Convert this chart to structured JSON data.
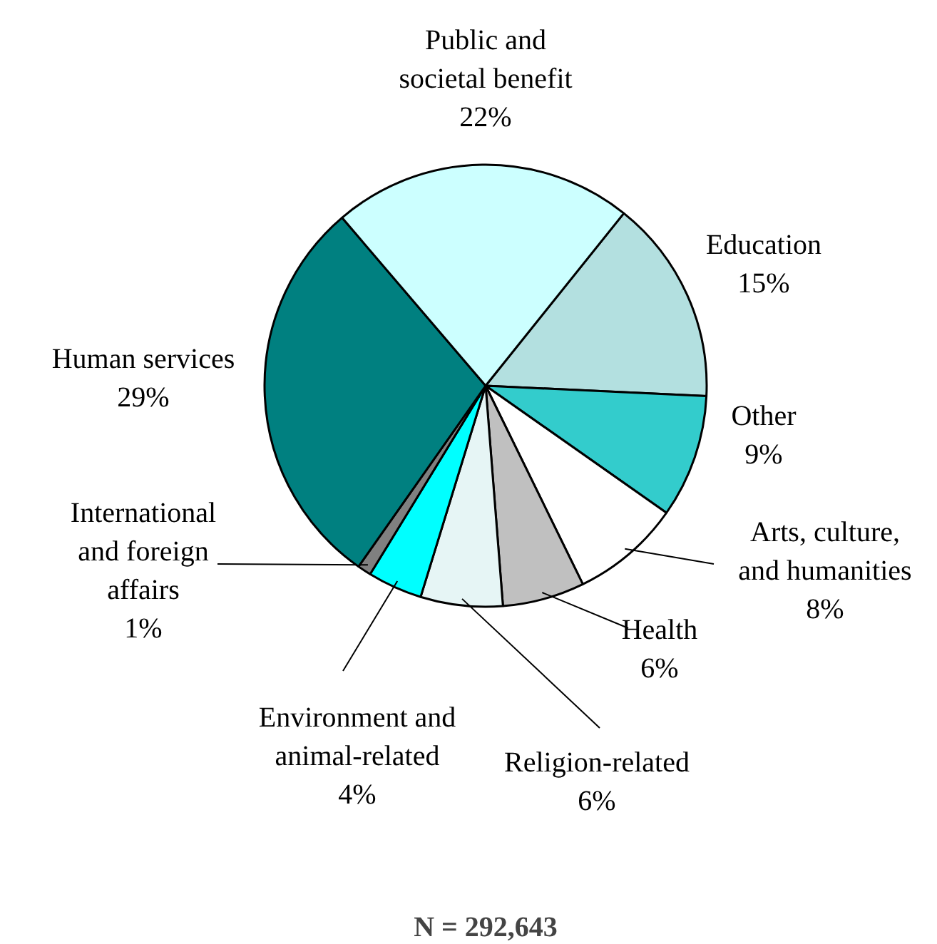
{
  "chart_data": {
    "type": "pie",
    "categories": [
      "Education",
      "Other",
      "Arts, culture, and humanities",
      "Health",
      "Religion-related",
      "Environment and animal-related",
      "International and foreign affairs",
      "Human services",
      "Public and societal benefit"
    ],
    "values": [
      15,
      9,
      8,
      6,
      6,
      4,
      1,
      29,
      22
    ],
    "value_labels": [
      "15%",
      "9%",
      "8%",
      "6%",
      "6%",
      "4%",
      "1%",
      "29%",
      "22%"
    ],
    "colors": [
      "#b3e0e0",
      "#33cccc",
      "#ffffff",
      "#c0c0c0",
      "#e6f5f5",
      "#00ffff",
      "#808080",
      "#008080",
      "#ccffff"
    ],
    "annotations": [
      "N = 292,643"
    ]
  }
}
